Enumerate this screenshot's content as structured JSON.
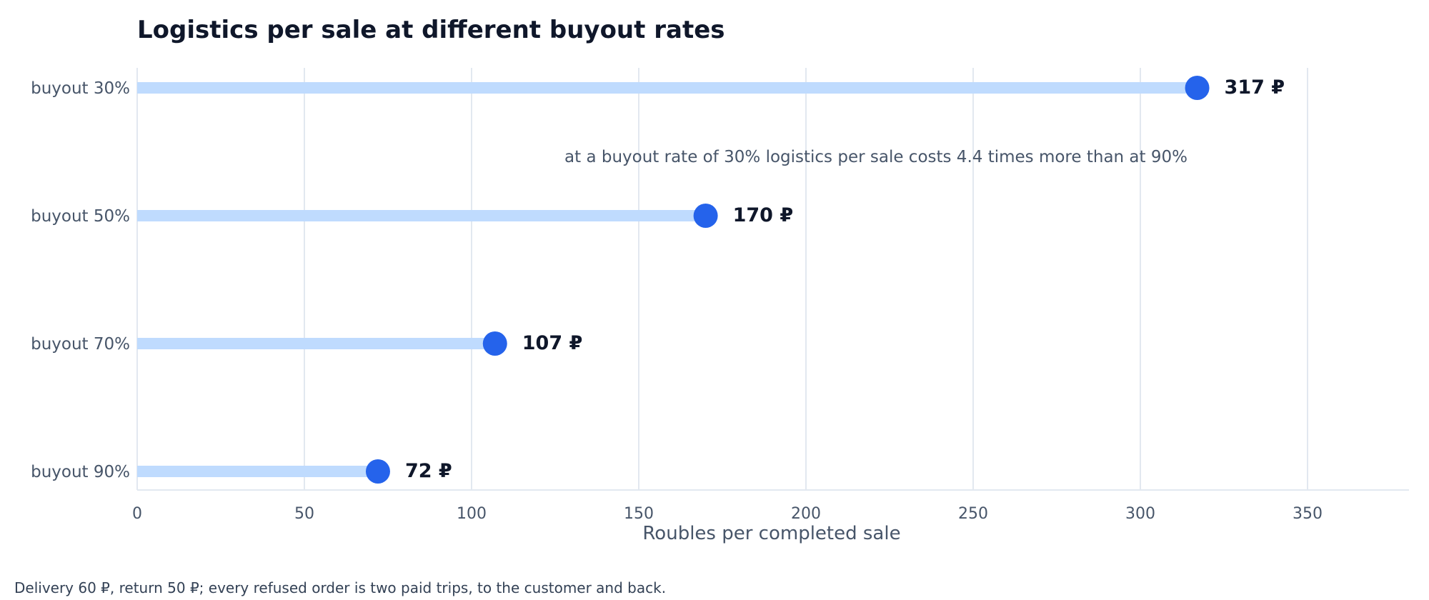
{
  "chart_data": {
    "type": "lollipop",
    "title": "Logistics per sale at different buyout rates",
    "xlabel": "Roubles per completed sale",
    "ylabel": "",
    "categories": [
      "buyout 30%",
      "buyout 50%",
      "buyout 70%",
      "buyout 90%"
    ],
    "values": [
      317,
      170,
      107,
      72
    ],
    "value_labels": [
      "317 ₽",
      "170 ₽",
      "107 ₽",
      "72 ₽"
    ],
    "xlim": [
      0,
      380
    ],
    "xticks": [
      0,
      50,
      100,
      150,
      200,
      250,
      300,
      350
    ],
    "grid": "vertical",
    "annotation": "at a buyout rate of 30% logistics per sale costs 4.4 times more than at 90%",
    "colors": {
      "stem": "#bfdbfe",
      "dot": "#2563eb",
      "grid": "#e2e8f0"
    }
  },
  "footnote": "Delivery 60 ₽, return 50 ₽; every refused order is two paid trips, to the customer and back."
}
